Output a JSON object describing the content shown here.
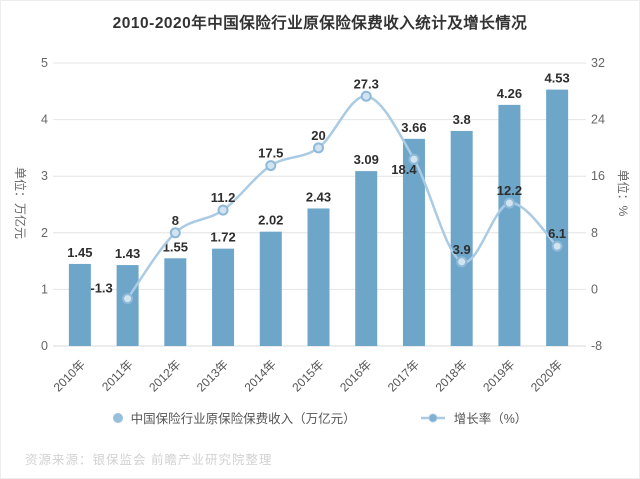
{
  "title": "2010-2020年中国保险行业原保险保费收入统计及增长情况",
  "source_note": "资源来源：银保监会 前瞻产业研究院整理",
  "legend": {
    "bar_label": "中国保险行业原保险保费收入（万亿元）",
    "line_label": "增长率（%）"
  },
  "colors": {
    "bar": "#6ea6ca",
    "line": "#aacbe3",
    "marker_fill": "#d3e4f1",
    "marker_stroke": "#8fb9d8",
    "value_label": "#2e2e2e",
    "axis_text": "#666666",
    "grid": "#e4e4e4",
    "axis_line": "#d9d9d9",
    "legend_bar_dot": "#97c0dc",
    "legend_line": "#aacbe3",
    "legend_line_dot": "#7fb0d4"
  },
  "chart_data": {
    "type": "bar+line",
    "title": "2010-2020年中国保险行业原保险保费收入统计及增长情况",
    "categories": [
      "2010年",
      "2011年",
      "2012年",
      "2013年",
      "2014年",
      "2015年",
      "2016年",
      "2017年",
      "2018年",
      "2019年",
      "2020年"
    ],
    "series": [
      {
        "name": "中国保险行业原保险保费收入（万亿元）",
        "type": "bar",
        "values": [
          1.45,
          1.43,
          1.55,
          1.72,
          2.02,
          2.43,
          3.09,
          3.66,
          3.8,
          4.26,
          4.53
        ],
        "labels": [
          "1.45",
          "1.43",
          "1.55",
          "1.72",
          "2.02",
          "2.43",
          "3.09",
          "3.66",
          "3.8",
          "4.26",
          "4.53"
        ]
      },
      {
        "name": "增长率（%）",
        "type": "line",
        "values": [
          null,
          -1.3,
          8,
          11.2,
          17.5,
          20,
          27.3,
          18.4,
          3.9,
          12.2,
          6.1
        ],
        "labels": [
          null,
          "-1.3",
          "8",
          "11.2",
          "17.5",
          "20",
          "27.3",
          "18.4",
          "3.9",
          "12.2",
          "6.1"
        ]
      }
    ],
    "y_left": {
      "label": "单位：万亿元",
      "min": 0,
      "max": 5,
      "ticks": [
        0,
        1,
        2,
        3,
        4,
        5
      ]
    },
    "y_right": {
      "label": "单位：%",
      "min": -8,
      "max": 32,
      "ticks": [
        -8,
        0,
        8,
        16,
        24,
        32
      ]
    },
    "grid": true,
    "legend_position": "bottom"
  }
}
